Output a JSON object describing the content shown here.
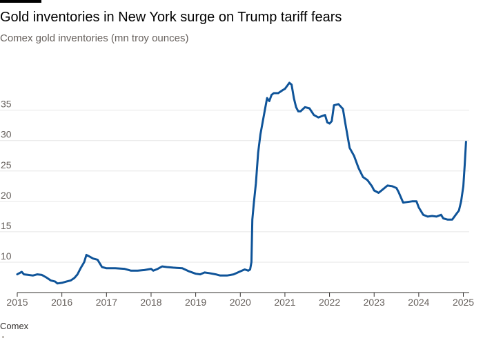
{
  "header": {
    "title": "Gold inventories in New York surge on Trump tariff fears",
    "subtitle": "Comex gold inventories (mn troy ounces)"
  },
  "footer": {
    "source": "Comex"
  },
  "colors": {
    "line": "#0f5499",
    "grid": "#e6e6e6",
    "tick_text": "#66605c",
    "axis": "#33302e"
  },
  "chart_data": {
    "type": "line",
    "title": "Gold inventories in New York surge on Trump tariff fears",
    "subtitle": "Comex gold inventories (mn troy ounces)",
    "xlabel": "",
    "ylabel": "",
    "xlim": [
      2015.0,
      2025.1
    ],
    "ylim": [
      5,
      42
    ],
    "y_ticks": [
      10,
      15,
      20,
      25,
      30,
      35
    ],
    "x_ticks": [
      2015,
      2016,
      2017,
      2018,
      2019,
      2020,
      2021,
      2022,
      2023,
      2024,
      2025
    ],
    "grid": true,
    "source": "Comex",
    "series": [
      {
        "values": [
          [
            2015.0,
            8.0
          ],
          [
            2015.05,
            8.2
          ],
          [
            2015.1,
            8.4
          ],
          [
            2015.15,
            8.0
          ],
          [
            2015.25,
            7.9
          ],
          [
            2015.35,
            7.8
          ],
          [
            2015.45,
            8.0
          ],
          [
            2015.55,
            7.9
          ],
          [
            2015.65,
            7.5
          ],
          [
            2015.75,
            7.0
          ],
          [
            2015.85,
            6.8
          ],
          [
            2015.9,
            6.5
          ],
          [
            2016.0,
            6.6
          ],
          [
            2016.1,
            6.8
          ],
          [
            2016.2,
            7.0
          ],
          [
            2016.28,
            7.4
          ],
          [
            2016.35,
            8.0
          ],
          [
            2016.42,
            9.0
          ],
          [
            2016.5,
            10.0
          ],
          [
            2016.55,
            11.2
          ],
          [
            2016.6,
            11.0
          ],
          [
            2016.7,
            10.6
          ],
          [
            2016.8,
            10.4
          ],
          [
            2016.9,
            9.2
          ],
          [
            2017.0,
            9.0
          ],
          [
            2017.2,
            9.0
          ],
          [
            2017.4,
            8.9
          ],
          [
            2017.55,
            8.6
          ],
          [
            2017.7,
            8.6
          ],
          [
            2017.85,
            8.7
          ],
          [
            2018.0,
            8.9
          ],
          [
            2018.05,
            8.6
          ],
          [
            2018.15,
            8.9
          ],
          [
            2018.25,
            9.3
          ],
          [
            2018.35,
            9.2
          ],
          [
            2018.5,
            9.1
          ],
          [
            2018.7,
            9.0
          ],
          [
            2018.85,
            8.5
          ],
          [
            2019.0,
            8.1
          ],
          [
            2019.1,
            8.0
          ],
          [
            2019.2,
            8.3
          ],
          [
            2019.3,
            8.2
          ],
          [
            2019.45,
            8.0
          ],
          [
            2019.55,
            7.8
          ],
          [
            2019.7,
            7.8
          ],
          [
            2019.85,
            8.0
          ],
          [
            2020.0,
            8.5
          ],
          [
            2020.1,
            8.8
          ],
          [
            2020.18,
            8.6
          ],
          [
            2020.22,
            8.8
          ],
          [
            2020.25,
            10.0
          ],
          [
            2020.27,
            17.0
          ],
          [
            2020.3,
            19.5
          ],
          [
            2020.35,
            23.0
          ],
          [
            2020.4,
            28.0
          ],
          [
            2020.45,
            31.0
          ],
          [
            2020.5,
            33.0
          ],
          [
            2020.55,
            35.0
          ],
          [
            2020.6,
            37.0
          ],
          [
            2020.65,
            36.5
          ],
          [
            2020.7,
            37.5
          ],
          [
            2020.75,
            37.8
          ],
          [
            2020.85,
            37.8
          ],
          [
            2020.95,
            38.3
          ],
          [
            2021.0,
            38.5
          ],
          [
            2021.05,
            39.0
          ],
          [
            2021.1,
            39.5
          ],
          [
            2021.15,
            39.2
          ],
          [
            2021.2,
            37.0
          ],
          [
            2021.25,
            35.5
          ],
          [
            2021.3,
            34.8
          ],
          [
            2021.35,
            34.8
          ],
          [
            2021.45,
            35.5
          ],
          [
            2021.55,
            35.3
          ],
          [
            2021.65,
            34.2
          ],
          [
            2021.75,
            33.8
          ],
          [
            2021.82,
            34.0
          ],
          [
            2021.9,
            34.2
          ],
          [
            2021.95,
            33.0
          ],
          [
            2022.0,
            32.8
          ],
          [
            2022.05,
            33.2
          ],
          [
            2022.1,
            35.8
          ],
          [
            2022.2,
            36.0
          ],
          [
            2022.3,
            35.2
          ],
          [
            2022.35,
            33.0
          ],
          [
            2022.45,
            28.8
          ],
          [
            2022.55,
            27.5
          ],
          [
            2022.65,
            25.5
          ],
          [
            2022.75,
            24.0
          ],
          [
            2022.85,
            23.5
          ],
          [
            2022.95,
            22.5
          ],
          [
            2023.0,
            21.8
          ],
          [
            2023.1,
            21.4
          ],
          [
            2023.2,
            22.0
          ],
          [
            2023.3,
            22.6
          ],
          [
            2023.4,
            22.5
          ],
          [
            2023.5,
            22.2
          ],
          [
            2023.55,
            21.5
          ],
          [
            2023.65,
            19.8
          ],
          [
            2023.75,
            19.9
          ],
          [
            2023.85,
            20.0
          ],
          [
            2023.95,
            20.0
          ],
          [
            2024.0,
            19.0
          ],
          [
            2024.1,
            17.8
          ],
          [
            2024.2,
            17.5
          ],
          [
            2024.3,
            17.6
          ],
          [
            2024.4,
            17.5
          ],
          [
            2024.5,
            17.8
          ],
          [
            2024.55,
            17.2
          ],
          [
            2024.65,
            17.0
          ],
          [
            2024.75,
            17.0
          ],
          [
            2024.85,
            18.0
          ],
          [
            2024.9,
            18.5
          ],
          [
            2024.95,
            20.0
          ],
          [
            2025.0,
            22.5
          ],
          [
            2025.03,
            26.0
          ],
          [
            2025.06,
            29.8
          ]
        ]
      }
    ]
  }
}
